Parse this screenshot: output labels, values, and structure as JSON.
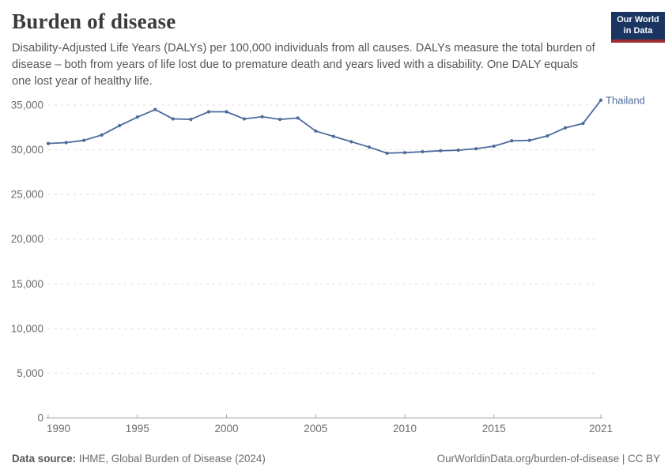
{
  "header": {
    "title": "Burden of disease",
    "subtitle": "Disability-Adjusted Life Years (DALYs) per 100,000 individuals from all causes. DALYs measure the total burden of disease – both from years of life lost due to premature death and years lived with a disability. One DALY equals one lost year of healthy life.",
    "logo": {
      "line1": "Our World",
      "line2": "in Data"
    }
  },
  "chart_data": {
    "type": "line",
    "title": "Burden of disease",
    "xlabel": "",
    "ylabel": "DALYs per 100,000 individuals",
    "ylim": [
      0,
      35000
    ],
    "xlim": [
      1990,
      2021
    ],
    "grid": "horizontal dashed",
    "legend_position": "end-of-line label",
    "yticks": [
      {
        "v": 0,
        "label": "0"
      },
      {
        "v": 5000,
        "label": "5,000"
      },
      {
        "v": 10000,
        "label": "10,000"
      },
      {
        "v": 15000,
        "label": "15,000"
      },
      {
        "v": 20000,
        "label": "20,000"
      },
      {
        "v": 25000,
        "label": "25,000"
      },
      {
        "v": 30000,
        "label": "30,000"
      },
      {
        "v": 35000,
        "label": "35,000"
      }
    ],
    "xticks": [
      {
        "v": 1990,
        "label": "1990"
      },
      {
        "v": 1995,
        "label": "1995"
      },
      {
        "v": 2000,
        "label": "2000"
      },
      {
        "v": 2005,
        "label": "2005"
      },
      {
        "v": 2010,
        "label": "2010"
      },
      {
        "v": 2015,
        "label": "2015"
      },
      {
        "v": 2021,
        "label": "2021"
      }
    ],
    "series": [
      {
        "name": "Thailand",
        "color": "#4c6a9c",
        "x": [
          1990,
          1991,
          1992,
          1993,
          1994,
          1995,
          1996,
          1997,
          1998,
          1999,
          2000,
          2001,
          2002,
          2003,
          2004,
          2005,
          2006,
          2007,
          2008,
          2009,
          2010,
          2011,
          2012,
          2013,
          2014,
          2015,
          2016,
          2017,
          2018,
          2019,
          2020,
          2021
        ],
        "values": [
          30700,
          30800,
          31050,
          31650,
          32700,
          33650,
          34500,
          33450,
          33400,
          34250,
          34250,
          33450,
          33700,
          33400,
          33550,
          32100,
          31500,
          30900,
          30300,
          29620,
          29680,
          29780,
          29890,
          29950,
          30120,
          30400,
          31000,
          31050,
          31550,
          32450,
          32950,
          35550
        ]
      }
    ]
  },
  "footer": {
    "source_label": "Data source:",
    "source_value": " IHME, Global Burden of Disease (2024)",
    "credit": "OurWorldinData.org/burden-of-disease | CC BY"
  },
  "colors": {
    "line": "#4c6a9c",
    "grid": "#dedede",
    "axis": "#a8a8a8",
    "axis_text": "#6d6d6d",
    "title_text": "#3b3b3b",
    "subtitle_text": "#565656",
    "footer_text": "#6d6d6d",
    "logo_bg": "#1a3660",
    "logo_stripe": "#9b2d30"
  }
}
